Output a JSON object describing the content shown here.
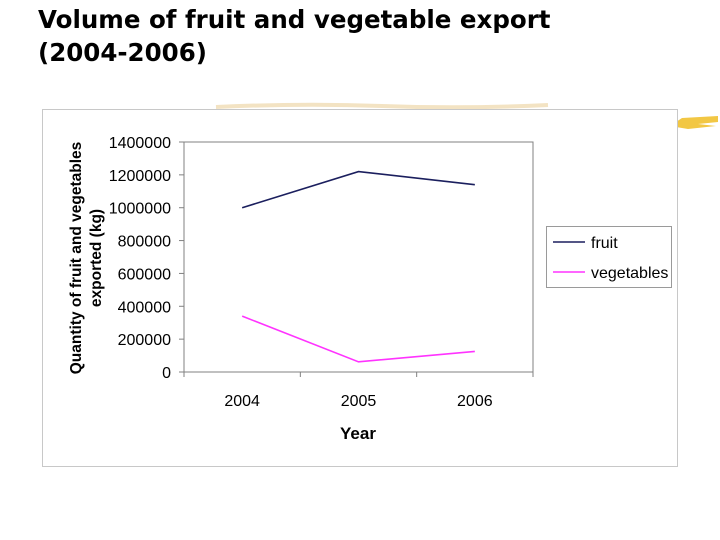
{
  "slide": {
    "title_line1": "Volume of fruit and vegetable export",
    "title_line2": "(2004-2006)"
  },
  "chart_data": {
    "type": "line",
    "categories": [
      "2004",
      "2005",
      "2006"
    ],
    "series": [
      {
        "name": "fruit",
        "values": [
          1000000,
          1220000,
          1140000
        ],
        "color": "#1b1f5e"
      },
      {
        "name": "vegetables",
        "values": [
          340000,
          62000,
          125000
        ],
        "color": "#ff33ff"
      }
    ],
    "xlabel": "Year",
    "ylabel_line1": "Quantity of fruit and vegetables",
    "ylabel_line2": "exported (kg)",
    "ylim": [
      0,
      1400000
    ],
    "yticks": [
      "0",
      "200000",
      "400000",
      "600000",
      "800000",
      "1000000",
      "1200000",
      "1400000"
    ],
    "ytick_values": [
      0,
      200000,
      400000,
      600000,
      800000,
      1000000,
      1200000,
      1400000
    ],
    "grid": false,
    "legend_position": "right",
    "plot_border_color": "#808080"
  }
}
